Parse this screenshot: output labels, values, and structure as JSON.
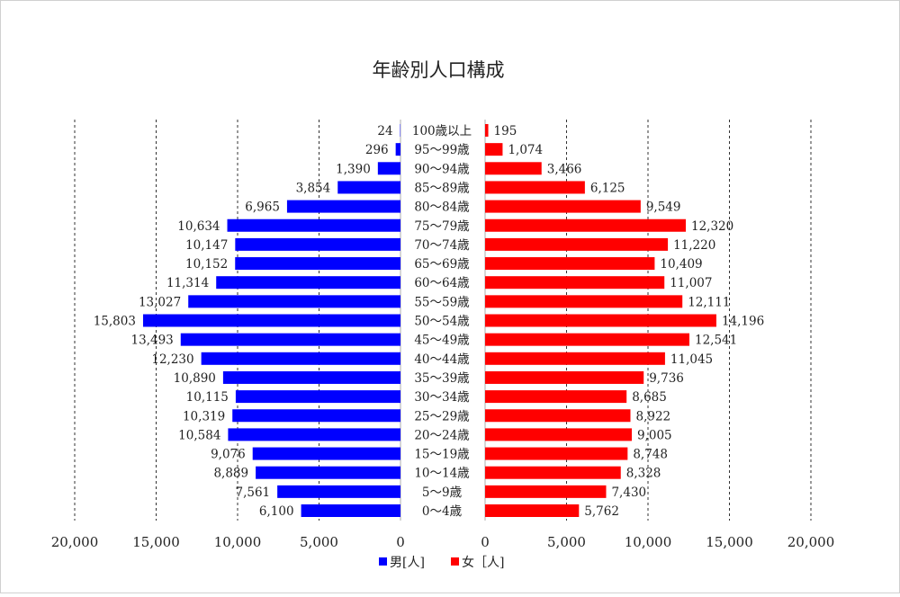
{
  "chart_data": {
    "type": "bar",
    "orientation": "horizontal-pyramid",
    "title": "年齢別人口構成",
    "categories": [
      "100歳以上",
      "95～99歳",
      "90～94歳",
      "85～89歳",
      "80～84歳",
      "75～79歳",
      "70～74歳",
      "65～69歳",
      "60～64歳",
      "55～59歳",
      "50～54歳",
      "45～49歳",
      "40～44歳",
      "35～39歳",
      "30～34歳",
      "25～29歳",
      "20～24歳",
      "15～19歳",
      "10～14歳",
      "5～9歳",
      "0～4歳"
    ],
    "series": [
      {
        "name": "男[人]",
        "color": "#0000ff",
        "values": [
          24,
          296,
          1390,
          3854,
          6965,
          10634,
          10147,
          10152,
          11314,
          13027,
          15803,
          13493,
          12230,
          10890,
          10115,
          10319,
          10584,
          9076,
          8889,
          7561,
          6100
        ]
      },
      {
        "name": "女［人]",
        "color": "#ff0000",
        "values": [
          195,
          1074,
          3466,
          6125,
          9549,
          12320,
          11220,
          10409,
          11007,
          12111,
          14196,
          12541,
          11045,
          9736,
          8685,
          8922,
          9005,
          8748,
          8328,
          7430,
          5762
        ]
      }
    ],
    "value_labels": {
      "male": [
        "24",
        "296",
        "1,390",
        "3,854",
        "6,965",
        "10,634",
        "10,147",
        "10,152",
        "11,314",
        "13,027",
        "15,803",
        "13,493",
        "12,230",
        "10,890",
        "10,115",
        "10,319",
        "10,584",
        "9,076",
        "8,889",
        "7,561",
        "6,100"
      ],
      "female": [
        "195",
        "1,074",
        "3,466",
        "6,125",
        "9,549",
        "12,320",
        "11,220",
        "10,409",
        "11,007",
        "12,111",
        "14,196",
        "12,541",
        "11,045",
        "9,736",
        "8,685",
        "8,922",
        "9,005",
        "8,748",
        "8,328",
        "7,430",
        "5,762"
      ]
    },
    "xlim": [
      0,
      20000
    ],
    "x_ticks": [
      0,
      5000,
      10000,
      15000,
      20000
    ],
    "x_tick_labels_male": [
      "0",
      "5,000",
      "10,000",
      "15,000",
      "20,000"
    ],
    "x_tick_labels_female": [
      "0",
      "5,000",
      "10,000",
      "15,000",
      "20,000"
    ],
    "grid": "vertical-dashed",
    "legend_position": "bottom"
  }
}
